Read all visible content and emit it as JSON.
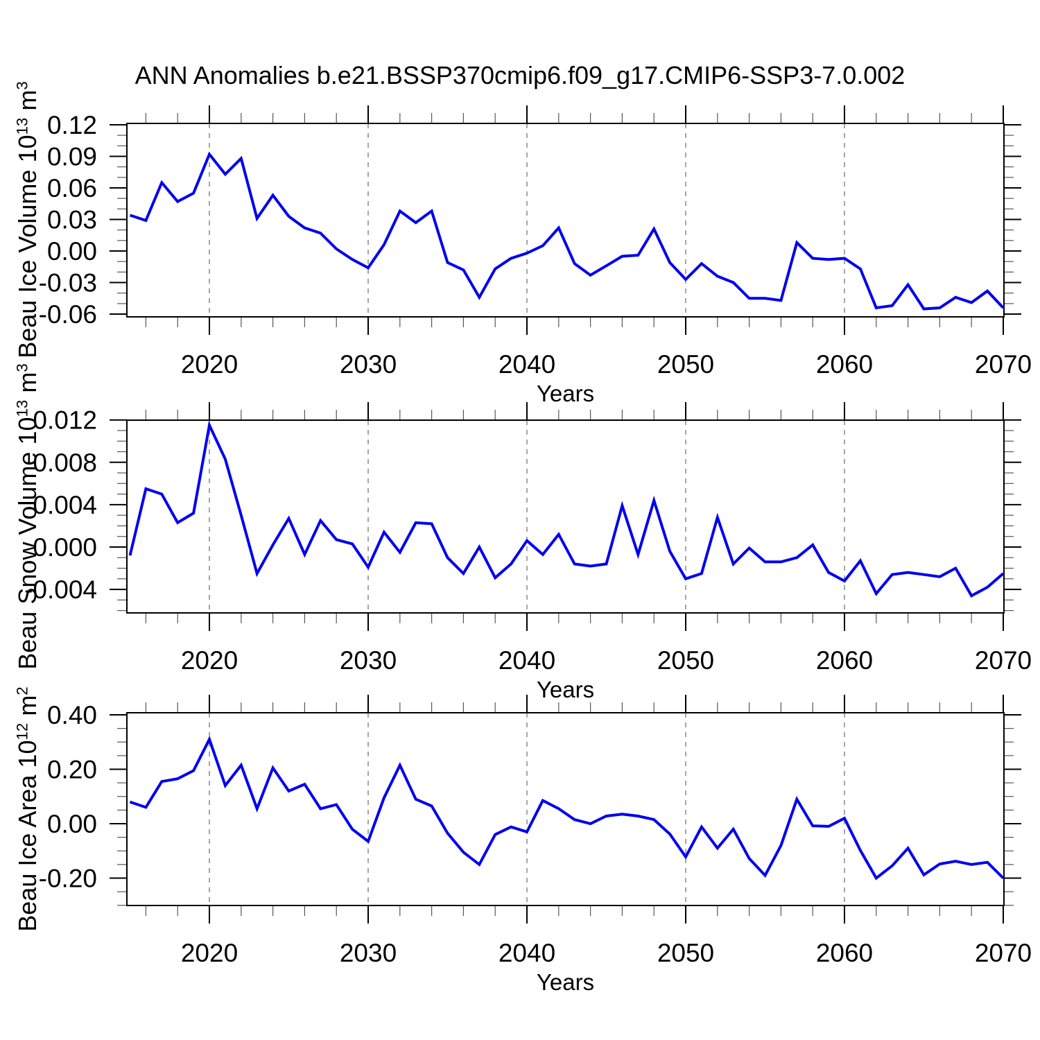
{
  "title": "ANN Anomalies b.e21.BSSP370cmip6.f09_g17.CMIP6-SSP3-7.0.002",
  "colors": {
    "line": "#0000ee",
    "grid": "#888888",
    "axis": "#000000",
    "minor_tick": "#555555",
    "background": "#ffffff"
  },
  "chart_data": {
    "type": "line",
    "xlabel": "Years",
    "x_tick_labels": [
      "2020",
      "2030",
      "2040",
      "2050",
      "2060",
      "2070"
    ],
    "x_major_ticks": [
      2020,
      2030,
      2040,
      2050,
      2060,
      2070
    ],
    "x_minor_step_years": 2,
    "xlim": [
      2014.803,
      2070.044
    ],
    "grid": "vertical-dashed-at-major-ticks",
    "legend": "none",
    "years": [
      2015,
      2016,
      2017,
      2018,
      2019,
      2020,
      2021,
      2022,
      2023,
      2024,
      2025,
      2026,
      2027,
      2028,
      2029,
      2030,
      2031,
      2032,
      2033,
      2034,
      2035,
      2036,
      2037,
      2038,
      2039,
      2040,
      2041,
      2042,
      2043,
      2044,
      2045,
      2046,
      2047,
      2048,
      2049,
      2050,
      2051,
      2052,
      2053,
      2054,
      2055,
      2056,
      2057,
      2058,
      2059,
      2060,
      2061,
      2062,
      2063,
      2064,
      2065,
      2066,
      2067,
      2068,
      2069,
      2070
    ],
    "panels": [
      {
        "name": "beau-ice-volume",
        "ylabel_text": "Beau Ice Volume 10^13 m^3",
        "ylabel_segments": [
          [
            "Beau Ice Volume 10",
            false
          ],
          [
            "13",
            true
          ],
          [
            " m",
            false
          ],
          [
            "3",
            true
          ]
        ],
        "y_tick_labels": [
          "0.12",
          "0.09",
          "0.06",
          "0.03",
          "0.00",
          "-0.03",
          "-0.06"
        ],
        "y_major_ticks": [
          0.12,
          0.09,
          0.06,
          0.03,
          0.0,
          -0.03,
          -0.06
        ],
        "y_minor_step": 0.01,
        "ylim": [
          -0.0626,
          0.1213
        ],
        "values": [
          0.034,
          0.029,
          0.065,
          0.047,
          0.055,
          0.092,
          0.073,
          0.088,
          0.031,
          0.053,
          0.033,
          0.022,
          0.017,
          0.002,
          -0.008,
          -0.016,
          0.006,
          0.038,
          0.027,
          0.038,
          -0.011,
          -0.018,
          -0.044,
          -0.017,
          -0.007,
          -0.002,
          0.005,
          0.022,
          -0.012,
          -0.023,
          -0.014,
          -0.005,
          -0.004,
          0.021,
          -0.011,
          -0.027,
          -0.012,
          -0.024,
          -0.03,
          -0.045,
          -0.045,
          -0.047,
          0.008,
          -0.007,
          -0.008,
          -0.007,
          -0.017,
          -0.054,
          -0.052,
          -0.032,
          -0.055,
          -0.054,
          -0.044,
          -0.049,
          -0.038,
          -0.054
        ]
      },
      {
        "name": "beau-snow-volume",
        "ylabel_text": "Beau Snow Volume 10^13 m^3",
        "ylabel_segments": [
          [
            "Beau Snow Volume 10",
            false
          ],
          [
            "13",
            true
          ],
          [
            " m",
            false
          ],
          [
            "3",
            true
          ]
        ],
        "y_tick_labels": [
          "0.012",
          "0.008",
          "0.004",
          "0.000",
          "-0.004"
        ],
        "y_major_ticks": [
          0.012,
          0.008,
          0.004,
          0.0,
          -0.004
        ],
        "y_minor_step": 0.001,
        "ylim": [
          -0.00622,
          0.01198
        ],
        "values": [
          -0.0008,
          0.0055,
          0.005,
          0.0023,
          0.0032,
          0.0115,
          0.0083,
          0.003,
          -0.0025,
          0.0002,
          0.0027,
          -0.0007,
          0.0025,
          0.0007,
          0.0003,
          -0.0019,
          0.0014,
          -0.0005,
          0.0023,
          0.0022,
          -0.001,
          -0.0025,
          0.0,
          -0.0029,
          -0.0016,
          0.0006,
          -0.0007,
          0.0012,
          -0.0016,
          -0.0018,
          -0.0016,
          0.0039,
          -0.0007,
          0.0044,
          -0.0004,
          -0.003,
          -0.0025,
          0.0028,
          -0.0016,
          -0.0001,
          -0.0014,
          -0.0014,
          -0.001,
          0.0002,
          -0.0024,
          -0.0032,
          -0.0013,
          -0.0044,
          -0.0026,
          -0.0024,
          -0.0026,
          -0.0028,
          -0.002,
          -0.0046,
          -0.0038,
          -0.0025
        ]
      },
      {
        "name": "beau-ice-area",
        "ylabel_text": "Beau Ice Area 10^12 m^2",
        "ylabel_segments": [
          [
            "Beau Ice Area 10",
            false
          ],
          [
            "12",
            true
          ],
          [
            " m",
            false
          ],
          [
            "2",
            true
          ]
        ],
        "y_tick_labels": [
          "0.40",
          "0.20",
          "0.00",
          "-0.20"
        ],
        "y_major_ticks": [
          0.4,
          0.2,
          0.0,
          -0.2
        ],
        "y_minor_step": 0.05,
        "ylim": [
          -0.3006,
          0.4076
        ],
        "values": [
          0.08,
          0.06,
          0.155,
          0.165,
          0.195,
          0.31,
          0.14,
          0.215,
          0.055,
          0.205,
          0.12,
          0.145,
          0.055,
          0.07,
          -0.02,
          -0.065,
          0.095,
          0.215,
          0.09,
          0.065,
          -0.035,
          -0.105,
          -0.15,
          -0.04,
          -0.012,
          -0.03,
          0.085,
          0.055,
          0.015,
          0.0,
          0.028,
          0.035,
          0.028,
          0.015,
          -0.038,
          -0.122,
          -0.012,
          -0.09,
          -0.02,
          -0.128,
          -0.19,
          -0.08,
          0.09,
          -0.008,
          -0.01,
          0.02,
          -0.098,
          -0.2,
          -0.155,
          -0.09,
          -0.188,
          -0.148,
          -0.138,
          -0.15,
          -0.142,
          -0.2
        ]
      }
    ]
  }
}
